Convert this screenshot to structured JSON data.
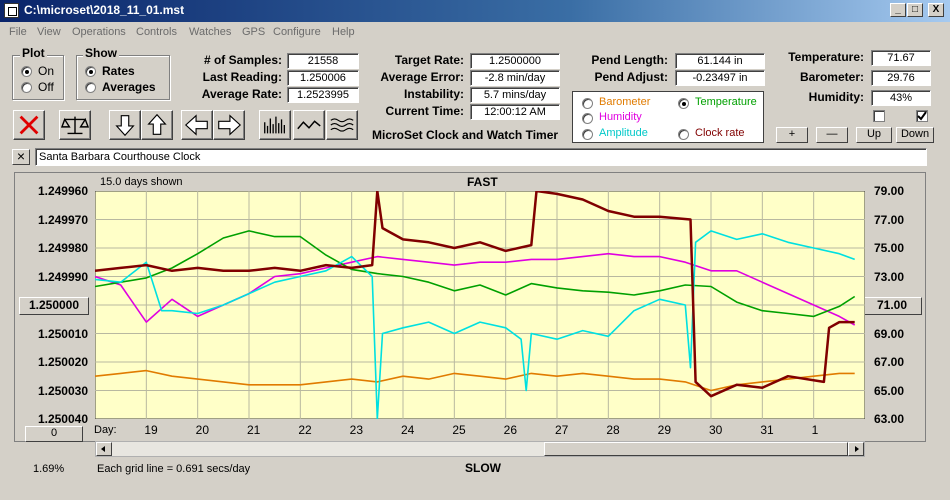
{
  "window": {
    "title": "C:\\microset\\2018_11_01.mst",
    "min": "_",
    "max": "□",
    "close": "X"
  },
  "menu": [
    "File",
    "View",
    "Operations",
    "Controls",
    "Watches",
    "GPS",
    "Configure",
    "Help"
  ],
  "plot_group": {
    "title": "Plot",
    "on": "On",
    "off": "Off",
    "selected": "On"
  },
  "show_group": {
    "title": "Show",
    "rates": "Rates",
    "averages": "Averages",
    "selected": "Rates"
  },
  "stats": {
    "samples_label": "# of Samples:",
    "samples": "21558",
    "last_reading_label": "Last Reading:",
    "last_reading": "1.250006",
    "avg_rate_label": "Average Rate:",
    "avg_rate": "1.2523995",
    "target_rate_label": "Target Rate:",
    "target_rate": "1.2500000",
    "avg_error_label": "Average Error:",
    "avg_error": "-2.8 min/day",
    "instability_label": "Instability:",
    "instability": "5.7 mins/day",
    "current_time_label": "Current Time:",
    "current_time": "12:00:12 AM",
    "pend_length_label": "Pend Length:",
    "pend_length": "61.144 in",
    "pend_adjust_label": "Pend Adjust:",
    "pend_adjust": "-0.23497 in",
    "temperature_label": "Temperature:",
    "temperature": "71.67",
    "barometer_label": "Barometer:",
    "barometer": "29.76",
    "humidity_label": "Humidity:",
    "humidity": "43%"
  },
  "app_caption": "MicroSet Clock and Watch Timer",
  "series_selector": {
    "barometer": "Barometer",
    "temperature": "Temperature",
    "humidity": "Humidity",
    "amplitude": "Amplitude",
    "clock_rate": "Clock rate",
    "selected": "Temperature"
  },
  "colors": {
    "barometer": "#e07b00",
    "temperature": "#00a000",
    "humidity": "#e000e0",
    "amplitude": "#00e0e0",
    "clock_rate": "#800000",
    "plot_bg": "#ffffc8"
  },
  "adjust_buttons": {
    "plus": "+",
    "minus": "—",
    "up": "Up",
    "down": "Down"
  },
  "close_x": "×",
  "clock_name": "Santa Barbara Courthouse Clock",
  "chart": {
    "days_shown": "15.0 days shown",
    "top_label": "FAST",
    "bottom_label": "SLOW",
    "center_value": "1.250000",
    "right_center_value": "71.00",
    "left_bottom_button": "0",
    "day_label": "Day:",
    "grid_note": "Each grid line = 0.691 secs/day",
    "percent": "1.69%"
  },
  "chart_data": {
    "type": "line",
    "left_ticks": [
      "1.249960",
      "1.249970",
      "1.249980",
      "1.249990",
      "1.250000",
      "1.250010",
      "1.250020",
      "1.250030",
      "1.250040"
    ],
    "right_ticks": [
      "79.00",
      "77.00",
      "75.00",
      "73.00",
      "71.00",
      "69.00",
      "67.00",
      "65.00",
      "63.00"
    ],
    "x_ticks": [
      "19",
      "20",
      "21",
      "22",
      "23",
      "24",
      "25",
      "26",
      "27",
      "28",
      "29",
      "30",
      "31",
      "1"
    ],
    "x_range": [
      18,
      33
    ],
    "left_range": [
      1.24996,
      1.25004
    ],
    "right_range": [
      63,
      79
    ],
    "series": [
      {
        "name": "Clock rate",
        "color_key": "clock_rate",
        "axis": "left",
        "x": [
          18,
          18.5,
          19,
          19.5,
          20,
          20.5,
          21,
          21.5,
          22,
          22.5,
          23,
          23.4,
          23.5,
          23.6,
          24,
          24.5,
          25,
          25.5,
          26,
          26.5,
          26.6,
          27,
          27.5,
          28,
          28.5,
          29,
          29.6,
          29.7,
          30,
          30.5,
          31,
          31.5,
          32.2,
          32.3,
          32.5,
          32.8
        ],
        "y": [
          1.249988,
          1.249987,
          1.249986,
          1.249988,
          1.249987,
          1.249988,
          1.249988,
          1.249987,
          1.249988,
          1.249986,
          1.249987,
          1.249986,
          1.24996,
          1.249973,
          1.249977,
          1.249978,
          1.24998,
          1.249978,
          1.249981,
          1.249979,
          1.24996,
          1.249961,
          1.249963,
          1.249967,
          1.249969,
          1.249969,
          1.24997,
          1.250027,
          1.250032,
          1.250028,
          1.250029,
          1.250025,
          1.250027,
          1.250008,
          1.250006,
          1.250006
        ]
      },
      {
        "name": "Temperature",
        "color_key": "temperature",
        "axis": "right",
        "x": [
          18,
          18.5,
          19,
          19.5,
          20,
          20.5,
          21,
          21.5,
          22,
          22.5,
          23,
          23.5,
          24,
          24.5,
          25,
          25.5,
          26,
          26.5,
          27,
          27.5,
          28,
          28.5,
          29,
          29.5,
          30,
          30.5,
          31,
          31.5,
          32,
          32.5,
          32.8
        ],
        "y": [
          72.3,
          72.6,
          72.9,
          73.6,
          74.6,
          75.7,
          76.2,
          75.8,
          75.8,
          74.5,
          73.5,
          73.2,
          73.0,
          72.6,
          72.0,
          72.4,
          71.7,
          72.5,
          72.2,
          72.0,
          71.9,
          71.7,
          72.0,
          72.4,
          72.3,
          71.2,
          70.6,
          70.4,
          70.2,
          70.9,
          71.6
        ]
      },
      {
        "name": "Humidity",
        "color_key": "humidity",
        "axis": "left",
        "x": [
          18,
          18.5,
          19,
          19.5,
          20,
          20.5,
          21,
          21.5,
          22,
          22.5,
          23,
          23.5,
          24,
          24.5,
          25,
          25.5,
          26,
          26.5,
          27,
          27.5,
          28,
          28.5,
          29,
          29.5,
          30,
          30.5,
          31,
          31.5,
          32,
          32.5,
          32.8
        ],
        "y": [
          1.24999,
          1.249993,
          1.250006,
          1.249998,
          1.250004,
          1.25,
          1.249996,
          1.24999,
          1.249989,
          1.249987,
          1.249985,
          1.249983,
          1.249984,
          1.249985,
          1.249986,
          1.249985,
          1.249985,
          1.249984,
          1.249984,
          1.249983,
          1.249982,
          1.249983,
          1.249983,
          1.249985,
          1.249988,
          1.249988,
          1.249992,
          1.249996,
          1.25,
          1.250004,
          1.250007
        ]
      },
      {
        "name": "Amplitude",
        "color_key": "amplitude",
        "axis": "left",
        "x": [
          18,
          18.5,
          19,
          19.3,
          19.5,
          20,
          20.5,
          21,
          21.5,
          22,
          22.5,
          23,
          23.4,
          23.5,
          23.6,
          24,
          24.5,
          25,
          25.5,
          26,
          26.3,
          26.4,
          26.5,
          27,
          27.5,
          28,
          28.5,
          29,
          29.5,
          29.6,
          29.7,
          30,
          30.5,
          31,
          31.5,
          32,
          32.5,
          32.8
        ],
        "y": [
          1.249991,
          1.249992,
          1.249985,
          1.250002,
          1.250002,
          1.250003,
          1.25,
          1.249996,
          1.249992,
          1.24999,
          1.249988,
          1.249983,
          1.24999,
          1.25004,
          1.25001,
          1.250008,
          1.250006,
          1.25001,
          1.250006,
          1.250008,
          1.250012,
          1.25003,
          1.25001,
          1.250012,
          1.250009,
          1.250011,
          1.250002,
          1.249998,
          1.25,
          1.250022,
          1.249978,
          1.249974,
          1.249977,
          1.249975,
          1.249978,
          1.24998,
          1.249982,
          1.249984
        ]
      },
      {
        "name": "Barometer",
        "color_key": "barometer",
        "axis": "left",
        "x": [
          18,
          18.5,
          19,
          19.5,
          20,
          20.5,
          21,
          21.5,
          22,
          22.5,
          23,
          23.5,
          24,
          24.5,
          25,
          25.5,
          26,
          26.5,
          27,
          27.5,
          28,
          28.5,
          29,
          29.5,
          30,
          30.5,
          31,
          31.5,
          32,
          32.5,
          32.8
        ],
        "y": [
          1.250025,
          1.250024,
          1.250023,
          1.250025,
          1.250026,
          1.250027,
          1.250028,
          1.250028,
          1.250028,
          1.250027,
          1.250026,
          1.250027,
          1.250025,
          1.250026,
          1.250024,
          1.250025,
          1.250026,
          1.250024,
          1.250025,
          1.250024,
          1.250025,
          1.250026,
          1.250026,
          1.250027,
          1.25003,
          1.250028,
          1.250027,
          1.250026,
          1.250025,
          1.250024,
          1.250024
        ]
      }
    ]
  }
}
